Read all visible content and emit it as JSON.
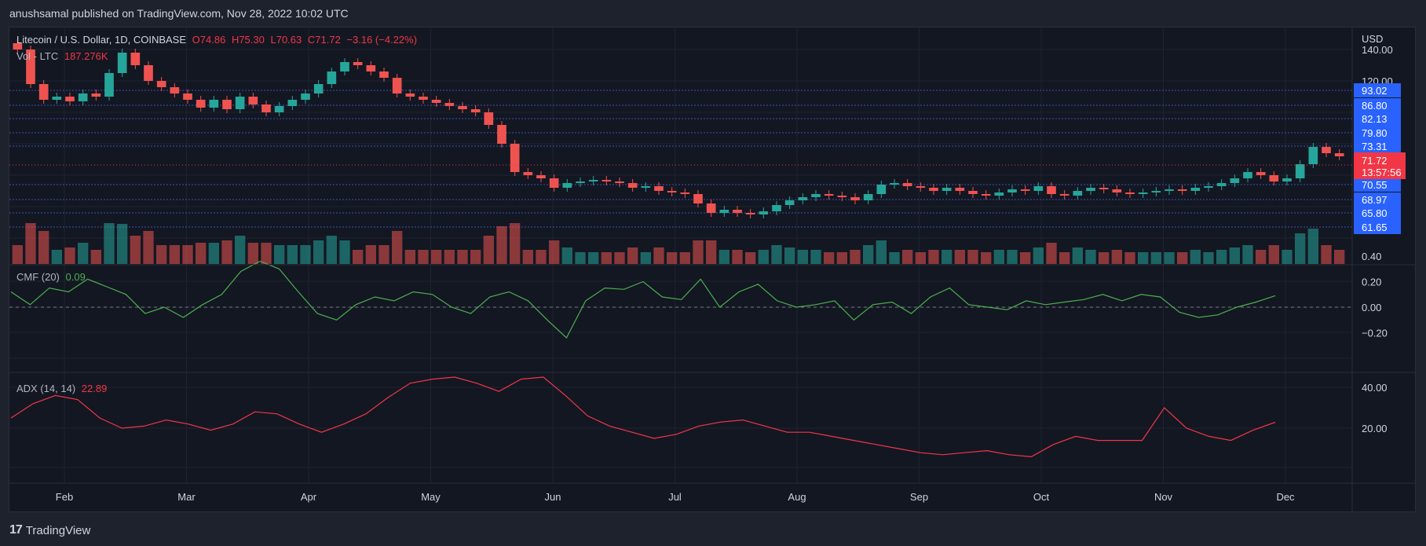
{
  "header": {
    "published_line": "anushsamal published on TradingView.com, Nov 28, 2022 10:02 UTC"
  },
  "legend": {
    "symbol": "Litecoin / U.S. Dollar, 1D, COINBASE",
    "open": "O74.86",
    "high": "H75.30",
    "low": "L70.63",
    "close": "C71.72",
    "change": "−3.16 (−4.22%)",
    "vol_label": "Vol - LTC",
    "vol_value": "187.276K",
    "cmf_label": "CMF (20)",
    "cmf_value": "0.09",
    "adx_label": "ADX (14, 14)",
    "adx_value": "22.89"
  },
  "price_scale": {
    "currency": "USD",
    "ticks": [
      "140.00",
      "120.00"
    ],
    "level_badges": [
      {
        "label": "93.02",
        "value": 93.02
      },
      {
        "label": "86.80",
        "value": 86.8
      },
      {
        "label": "82.13",
        "value": 82.13
      },
      {
        "label": "79.80",
        "value": 79.8
      },
      {
        "label": "73.31",
        "value": 73.31
      },
      {
        "label": "70.55",
        "value": 70.55
      },
      {
        "label": "68.97",
        "value": 68.97
      },
      {
        "label": "65.80",
        "value": 65.8
      },
      {
        "label": "61.65",
        "value": 61.65
      }
    ],
    "last_price": {
      "label": "71.72",
      "countdown": "13:57:56"
    }
  },
  "cmf_scale": [
    "0.40",
    "0.20",
    "0.00",
    "−0.20"
  ],
  "adx_scale": [
    "40.00",
    "20.00"
  ],
  "time_axis": [
    "Feb",
    "Mar",
    "Apr",
    "May",
    "Jun",
    "Jul",
    "Aug",
    "Sep",
    "Oct",
    "Nov",
    "Dec"
  ],
  "footer": {
    "logo_mark": "17",
    "brand": "TradingView"
  },
  "colors": {
    "up": "#26a69a",
    "down": "#ef5350",
    "level_badge": "#2962ff",
    "last_price_badge": "#f23645",
    "cmf_line": "#4caf50",
    "adx_line": "#f23645",
    "level_line": "#3f51b5"
  },
  "chart_data": {
    "type": "line",
    "x_labels": [
      "Feb",
      "Mar",
      "Apr",
      "May",
      "Jun",
      "Jul",
      "Aug",
      "Sep",
      "Oct",
      "Nov",
      "Dec"
    ],
    "series": [
      {
        "name": "Litecoin / U.S. Dollar",
        "type": "candlestick-close",
        "values": [
          140,
          118,
          108,
          110,
          107,
          112,
          110,
          125,
          138,
          130,
          120,
          116,
          112,
          108,
          103,
          108,
          102,
          110,
          105,
          100,
          104,
          108,
          112,
          118,
          126,
          132,
          130,
          126,
          122,
          112,
          110,
          108,
          106,
          104,
          102,
          100,
          92,
          80,
          62,
          60,
          58,
          52,
          55,
          56,
          57,
          56,
          55,
          52,
          53,
          50,
          49,
          48,
          42,
          36,
          38,
          36,
          35,
          37,
          41,
          44,
          46,
          48,
          47,
          46,
          44,
          48,
          54,
          55,
          53,
          52,
          50,
          52,
          50,
          48,
          47,
          49,
          51,
          50,
          53,
          48,
          47,
          50,
          52,
          51,
          49,
          48,
          49,
          50,
          51,
          50,
          52,
          53,
          55,
          58,
          62,
          60,
          56,
          58,
          67,
          78,
          74,
          72
        ]
      },
      {
        "name": "CMF (20)",
        "values": [
          0.12,
          0.02,
          0.15,
          0.12,
          0.22,
          0.16,
          0.1,
          -0.05,
          0.0,
          -0.08,
          0.02,
          0.1,
          0.28,
          0.36,
          0.3,
          0.12,
          -0.05,
          -0.1,
          0.02,
          0.08,
          0.05,
          0.12,
          0.1,
          0.0,
          -0.05,
          0.08,
          0.12,
          0.05,
          -0.1,
          -0.24,
          0.05,
          0.15,
          0.14,
          0.2,
          0.08,
          0.06,
          0.22,
          0.0,
          0.12,
          0.18,
          0.05,
          0.0,
          0.02,
          0.05,
          -0.1,
          0.02,
          0.04,
          -0.05,
          0.08,
          0.15,
          0.02,
          0.0,
          -0.02,
          0.05,
          0.02,
          0.04,
          0.06,
          0.1,
          0.05,
          0.1,
          0.08,
          -0.04,
          -0.08,
          -0.06,
          0.0,
          0.04,
          0.09
        ]
      },
      {
        "name": "ADX (14, 14)",
        "values": [
          25,
          32,
          36,
          34,
          25,
          20,
          21,
          24,
          22,
          19,
          22,
          28,
          27,
          22,
          18,
          22,
          27,
          35,
          42,
          44,
          45,
          42,
          38,
          44,
          45,
          36,
          26,
          21,
          18,
          15,
          17,
          21,
          23,
          24,
          21,
          18,
          18,
          16,
          14,
          12,
          10,
          8,
          7,
          8,
          9,
          7,
          6,
          12,
          16,
          14,
          14,
          14,
          30,
          20,
          16,
          14,
          19,
          22.89
        ]
      }
    ],
    "price_axis": {
      "unit": "USD",
      "visible_ticks": [
        140,
        120
      ]
    },
    "cmf_axis": {
      "ticks": [
        0.4,
        0.2,
        0.0,
        -0.2
      ]
    },
    "adx_axis": {
      "ticks": [
        40,
        20
      ]
    },
    "horizontal_levels": [
      93.02,
      86.8,
      82.13,
      79.8,
      73.31,
      70.55,
      68.97,
      65.8,
      61.65
    ],
    "last_price": 71.72
  }
}
